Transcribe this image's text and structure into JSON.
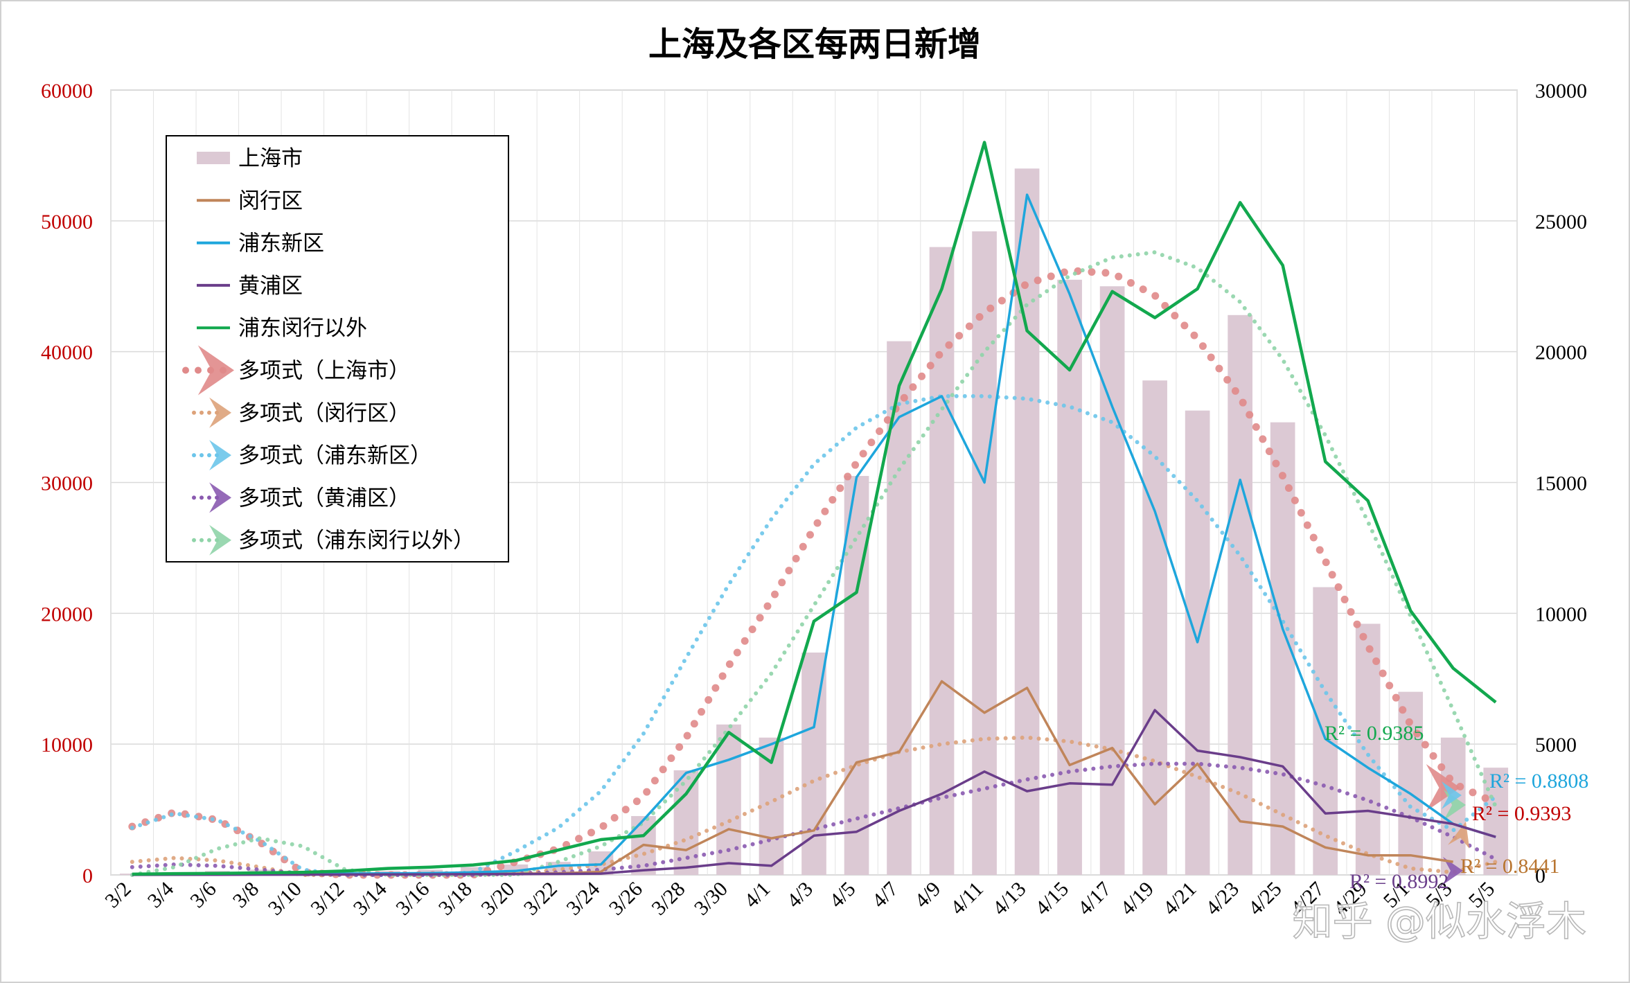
{
  "chart_data": {
    "type": "bar",
    "title": "上海及各区每两日新增",
    "watermark": "知乎 @似水浮木",
    "categories": [
      "3/2",
      "3/4",
      "3/6",
      "3/8",
      "3/10",
      "3/12",
      "3/14",
      "3/16",
      "3/18",
      "3/20",
      "3/22",
      "3/24",
      "3/26",
      "3/28",
      "3/30",
      "4/1",
      "4/3",
      "4/5",
      "4/7",
      "4/9",
      "4/11",
      "4/13",
      "4/15",
      "4/17",
      "4/19",
      "4/21",
      "4/23",
      "4/25",
      "4/27",
      "4/29",
      "5/1",
      "5/3",
      "5/5"
    ],
    "x_tick_labels": [
      "3/2",
      "3/4",
      "3/6",
      "3/8",
      "3/10",
      "3/12",
      "3/14",
      "3/16",
      "3/18",
      "3/20",
      "3/22",
      "3/24",
      "3/26",
      "3/28",
      "3/30",
      "4/1",
      "4/3",
      "4/5",
      "4/7",
      "4/9",
      "4/11",
      "4/13",
      "4/15",
      "4/17",
      "4/19",
      "4/21",
      "4/23",
      "4/25",
      "4/27",
      "4/29",
      "5/1",
      "5/3",
      "5/5"
    ],
    "left_axis": {
      "ylim": [
        0,
        60000
      ],
      "ticks": [
        "0",
        "10000",
        "20000",
        "30000",
        "40000",
        "50000",
        "60000"
      ],
      "color": "#c00000"
    },
    "right_axis": {
      "ylim": [
        0,
        30000
      ],
      "ticks": [
        "0",
        "5000",
        "10000",
        "15000",
        "20000",
        "25000",
        "30000"
      ],
      "color": "#000000"
    },
    "grid": true,
    "legend_position": "top-left",
    "series": [
      {
        "name": "上海市",
        "kind": "bar",
        "axis": "left",
        "color": "#dcc9d4",
        "values": [
          100,
          200,
          300,
          400,
          300,
          200,
          300,
          400,
          600,
          800,
          1000,
          1800,
          4500,
          8000,
          11500,
          10500,
          17000,
          30500,
          40800,
          48000,
          49200,
          54000,
          45500,
          45000,
          37800,
          35500,
          42800,
          34600,
          22000,
          19200,
          14000,
          10500,
          8200
        ]
      },
      {
        "name": "闵行区",
        "kind": "line",
        "axis": "right",
        "color": "#c0855a",
        "values": [
          5,
          10,
          15,
          20,
          25,
          30,
          35,
          40,
          45,
          50,
          60,
          120,
          1150,
          950,
          1750,
          1400,
          1700,
          4300,
          4700,
          7400,
          6200,
          7150,
          4200,
          4850,
          2700,
          4250,
          2050,
          1850,
          1050,
          750,
          750,
          500,
          null
        ]
      },
      {
        "name": "浦东新区",
        "kind": "line",
        "axis": "right",
        "color": "#1ea6dc",
        "values": [
          15,
          20,
          30,
          40,
          45,
          50,
          60,
          70,
          100,
          150,
          350,
          400,
          2100,
          3900,
          4400,
          5000,
          5650,
          15200,
          17500,
          18300,
          15000,
          26000,
          22200,
          17900,
          13900,
          8900,
          15100,
          9400,
          5200,
          4100,
          3100,
          1950,
          1450
        ]
      },
      {
        "name": "黄浦区",
        "kind": "line",
        "axis": "right",
        "color": "#6a3d8a",
        "values": [
          3,
          5,
          8,
          10,
          10,
          15,
          20,
          25,
          30,
          35,
          40,
          50,
          180,
          280,
          450,
          350,
          1500,
          1650,
          2450,
          3100,
          3950,
          3200,
          3500,
          3450,
          6300,
          4750,
          4500,
          4150,
          2350,
          2450,
          2200,
          1950,
          1450
        ]
      },
      {
        "name": "浦东闵行以外",
        "kind": "line",
        "axis": "right",
        "color": "#12a84e",
        "values": [
          30,
          50,
          60,
          80,
          100,
          150,
          250,
          300,
          380,
          550,
          950,
          1350,
          1500,
          3100,
          5450,
          4300,
          9700,
          10800,
          18700,
          22400,
          28000,
          20800,
          19300,
          22300,
          21300,
          22400,
          25700,
          23300,
          15800,
          14300,
          10100,
          7900,
          6600
        ]
      },
      {
        "name": "多项式（上海市）",
        "kind": "trendline",
        "style": "dots",
        "color": "#e08a8a",
        "axis": "left",
        "r2_label": "R² = 0.9393"
      },
      {
        "name": "多项式（闵行区）",
        "kind": "trendline",
        "style": "dots",
        "color": "#dda27a",
        "axis": "right",
        "r2_label": "R² = 0.8441"
      },
      {
        "name": "多项式（浦东新区）",
        "kind": "trendline",
        "style": "dots",
        "color": "#6cc5ea",
        "axis": "right",
        "r2_label": "R² = 0.8808"
      },
      {
        "name": "多项式（黄浦区）",
        "kind": "trendline",
        "style": "dots",
        "color": "#8a5ab0",
        "axis": "right",
        "r2_label": "R² = 0.8992"
      },
      {
        "name": "多项式（浦东闵行以外）",
        "kind": "trendline",
        "style": "dots",
        "color": "#8fd4a8",
        "axis": "right",
        "r2_label": "R² = 0.9385"
      }
    ],
    "trendline_curves": [
      {
        "series": "上海市",
        "axis": "left",
        "x": [
          0,
          1,
          2,
          3,
          4,
          5,
          6,
          7,
          8,
          9,
          10,
          11,
          12,
          13,
          14,
          15,
          16,
          17,
          18,
          19,
          20,
          21,
          22,
          23,
          24,
          25,
          26,
          27,
          28,
          29,
          30,
          31,
          32
        ],
        "y": [
          3700,
          4800,
          4200,
          2500,
          200,
          -1000,
          -1200,
          -800,
          0,
          1000,
          2000,
          3600,
          6000,
          10500,
          16000,
          21000,
          26500,
          31500,
          36000,
          40000,
          43000,
          45200,
          46200,
          46000,
          44300,
          41000,
          36500,
          30500,
          24000,
          17500,
          11500,
          7000,
          5500
        ]
      },
      {
        "series": "闵行区",
        "axis": "right",
        "x": [
          0,
          1,
          2,
          3,
          4,
          5,
          6,
          7,
          8,
          9,
          10,
          11,
          12,
          13,
          14,
          15,
          16,
          17,
          18,
          19,
          20,
          21,
          22,
          23,
          24,
          25,
          26,
          27,
          28,
          29,
          30,
          31,
          32
        ],
        "y": [
          500,
          650,
          550,
          300,
          0,
          -200,
          -250,
          -200,
          -100,
          50,
          200,
          400,
          800,
          1350,
          2050,
          2800,
          3600,
          4200,
          4700,
          5000,
          5200,
          5250,
          5100,
          4800,
          4350,
          3750,
          3100,
          2300,
          1500,
          800,
          250,
          100,
          500
        ]
      },
      {
        "series": "浦东新区",
        "axis": "right",
        "x": [
          0,
          1,
          2,
          3,
          4,
          5,
          6,
          7,
          8,
          9,
          10,
          11,
          12,
          13,
          14,
          15,
          16,
          17,
          18,
          19,
          20,
          21,
          22,
          23,
          24,
          25,
          26,
          27,
          28,
          29,
          30,
          31,
          32
        ],
        "y": [
          1800,
          2350,
          2100,
          1300,
          200,
          -500,
          -800,
          -500,
          100,
          900,
          1800,
          3200,
          5400,
          8300,
          11100,
          13600,
          15700,
          17100,
          18000,
          18300,
          18300,
          18200,
          17900,
          17300,
          16000,
          14300,
          12200,
          9700,
          7000,
          4600,
          2600,
          1700,
          3000
        ]
      },
      {
        "series": "黄浦区",
        "axis": "right",
        "x": [
          0,
          1,
          2,
          3,
          4,
          5,
          6,
          7,
          8,
          9,
          10,
          11,
          12,
          13,
          14,
          15,
          16,
          17,
          18,
          19,
          20,
          21,
          22,
          23,
          24,
          25,
          26,
          27,
          28,
          29,
          30,
          31,
          32
        ],
        "y": [
          300,
          400,
          350,
          200,
          50,
          -50,
          -80,
          -50,
          0,
          50,
          100,
          200,
          350,
          650,
          950,
          1350,
          1750,
          2150,
          2550,
          2950,
          3300,
          3650,
          3950,
          4150,
          4250,
          4250,
          4100,
          3850,
          3400,
          2850,
          2200,
          1450,
          600
        ]
      },
      {
        "series": "浦东闵行以外",
        "axis": "right",
        "x": [
          0,
          1,
          2,
          3,
          4,
          5,
          6,
          7,
          8,
          9,
          10,
          11,
          12,
          13,
          14,
          15,
          16,
          17,
          18,
          19,
          20,
          21,
          22,
          23,
          24,
          25,
          26,
          27,
          28,
          29,
          30,
          31,
          32
        ],
        "y": [
          0,
          300,
          1000,
          1400,
          1100,
          200,
          -300,
          -300,
          -200,
          0,
          500,
          1100,
          2000,
          3600,
          5600,
          7700,
          10300,
          12900,
          15500,
          17800,
          20000,
          21800,
          22900,
          23600,
          23800,
          23200,
          21900,
          19700,
          16800,
          13500,
          9900,
          6300,
          2600
        ]
      }
    ],
    "r2_labels": [
      {
        "text": "R² = 0.9385",
        "color": "#12a84e"
      },
      {
        "text": "R² = 0.8808",
        "color": "#1ea6dc"
      },
      {
        "text": "R² = 0.9393",
        "color": "#c00000"
      },
      {
        "text": "R² = 0.8441",
        "color": "#b8742e"
      },
      {
        "text": "R² = 0.8992",
        "color": "#6a3d8a"
      }
    ]
  }
}
